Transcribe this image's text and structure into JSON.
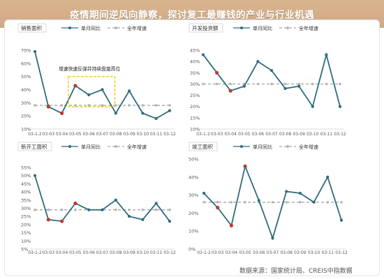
{
  "page": {
    "headline": "疫情期间逆风向静察，探讨复工最赚钱的产业与行业机遇",
    "source": "数据来源：国家统计局、CREIS中指数据"
  },
  "colors": {
    "line": "#2e6b7e",
    "highlight": "#c0392b",
    "dashed": "#b5b5b5",
    "box": "#e8c200"
  },
  "chart_data": [
    {
      "type": "line",
      "title": "销售面积",
      "categories": [
        "03-1-2",
        "03-03",
        "03-04",
        "03-05",
        "03-06",
        "03-07",
        "03-08",
        "03-09",
        "03-10",
        "03-11",
        "03-12"
      ],
      "series": [
        {
          "name": "单月同比",
          "values": [
            69,
            27,
            22,
            43,
            36,
            40,
            22,
            39,
            22,
            18,
            24
          ]
        },
        {
          "name": "全年增速",
          "values": [
            28,
            28,
            28,
            28,
            28,
            28,
            28,
            28,
            28,
            28,
            28
          ]
        }
      ],
      "highlight_idx": [
        1,
        2,
        3
      ],
      "ylim": [
        10,
        70
      ],
      "yticks": [
        "10%",
        "20%",
        "30%",
        "40%",
        "50%",
        "60%",
        "70%"
      ],
      "annotation": "增速快速反弹并持续盘旋高位"
    },
    {
      "type": "line",
      "title": "开发投资额",
      "categories": [
        "03-1-2",
        "03-03",
        "03-04",
        "03-05",
        "03-06",
        "03-07",
        "03-08",
        "03-09",
        "03-10",
        "03-11",
        "03-12"
      ],
      "series": [
        {
          "name": "单月同比",
          "values": [
            43,
            35,
            27,
            29,
            40,
            36,
            28,
            29,
            20,
            43,
            20
          ]
        },
        {
          "name": "全年增速",
          "values": [
            30,
            30,
            30,
            30,
            30,
            30,
            30,
            30,
            30,
            30,
            30
          ]
        }
      ],
      "highlight_idx": [
        1,
        2
      ],
      "ylim": [
        10,
        45
      ],
      "yticks": [
        "10%",
        "15%",
        "20%",
        "25%",
        "30%",
        "35%",
        "40%",
        "45%"
      ]
    },
    {
      "type": "line",
      "title": "新开工面积",
      "categories": [
        "03-1-2",
        "03-03",
        "03-04",
        "03-05",
        "03-06",
        "03-07",
        "03-08",
        "03-09",
        "03-10",
        "03-11",
        "03-12"
      ],
      "series": [
        {
          "name": "单月同比",
          "values": [
            50,
            23,
            22,
            33,
            29,
            29,
            35,
            25,
            23,
            33,
            22
          ]
        },
        {
          "name": "全年增速",
          "values": [
            29,
            29,
            29,
            29,
            29,
            29,
            29,
            29,
            29,
            29,
            29
          ]
        }
      ],
      "highlight_idx": [
        1,
        2,
        3
      ],
      "ylim": [
        5,
        55
      ],
      "yticks": [
        "5%",
        "10%",
        "15%",
        "20%",
        "25%",
        "30%",
        "35%",
        "40%",
        "45%",
        "50%",
        "55%"
      ]
    },
    {
      "type": "line",
      "title": "竣工面积",
      "categories": [
        "03-1-2",
        "03-03",
        "03-04",
        "03-05",
        "03-06",
        "03-07",
        "03-08",
        "03-09",
        "03-10",
        "03-11",
        "03-12"
      ],
      "series": [
        {
          "name": "单月同比",
          "values": [
            31,
            23,
            13,
            46,
            27,
            6,
            32,
            31,
            26,
            40,
            16
          ]
        },
        {
          "name": "全年增速",
          "values": [
            26,
            26,
            26,
            26,
            26,
            26,
            26,
            26,
            26,
            26,
            26
          ]
        }
      ],
      "highlight_idx": [
        1,
        2,
        3
      ],
      "ylim": [
        0,
        50
      ],
      "yticks": [
        "0%",
        "10%",
        "20%",
        "30%",
        "40%",
        "50%"
      ]
    }
  ]
}
